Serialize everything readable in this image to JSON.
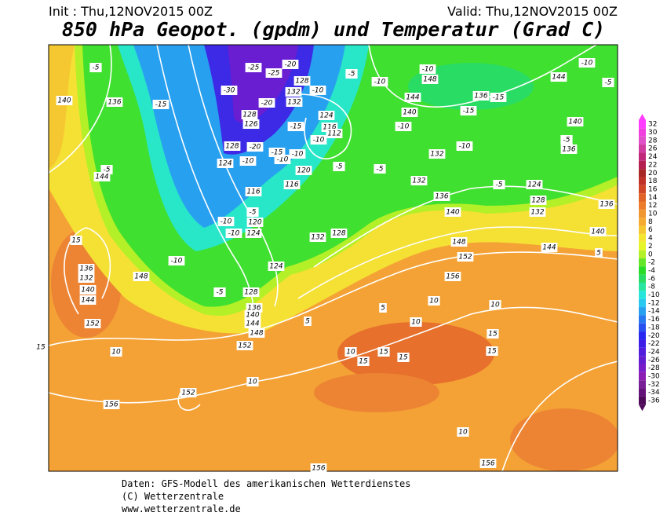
{
  "header": {
    "init": "Init : Thu,12NOV2015 00Z",
    "valid": "Valid: Thu,12NOV2015 00Z",
    "title": "850 hPa Geopot. (gpdm) und Temperatur (Grad C)"
  },
  "footer": [
    "Daten: GFS-Modell des amerikanischen Wetterdienstes",
    "(C) Wetterzentrale",
    "www.wetterzentrale.de"
  ],
  "colorbar": {
    "ticks": [
      32,
      30,
      28,
      26,
      24,
      22,
      20,
      18,
      16,
      14,
      12,
      10,
      8,
      6,
      4,
      2,
      0,
      -2,
      -4,
      -6,
      -8,
      -10,
      -12,
      -14,
      -16,
      -18,
      -20,
      -22,
      -24,
      -26,
      -28,
      -30,
      -32,
      -34,
      -36
    ],
    "colors": [
      "#ff3cff",
      "#f040e0",
      "#e050c8",
      "#d03ca0",
      "#c0287a",
      "#b41e50",
      "#a82828",
      "#c03228",
      "#d24628",
      "#e06428",
      "#eb7d2d",
      "#f09632",
      "#f5aa32",
      "#f5c832",
      "#f5e632",
      "#e6f528",
      "#b4f028",
      "#64e628",
      "#28dc28",
      "#28dc64",
      "#28e6a0",
      "#28e6dc",
      "#28c8f0",
      "#28a0f0",
      "#2878f0",
      "#2850f0",
      "#2828f0",
      "#3c1ee6",
      "#501edc",
      "#641ed2",
      "#781ec8",
      "#8c1eb4",
      "#781e96",
      "#641478",
      "#500a5a"
    ]
  },
  "map_labels": [
    "-5",
    "140",
    "136",
    "-15",
    "-5",
    "144",
    "15",
    "136",
    "132",
    "140",
    "144",
    "148",
    "-10",
    "152",
    "15",
    "10",
    "152",
    "156",
    "10",
    "-10",
    "-5",
    "120",
    "124",
    "116",
    "116",
    "120",
    "124",
    "128",
    "136",
    "140",
    "144",
    "148",
    "152",
    "5",
    "132",
    "128",
    "-5",
    "-5",
    "132",
    "136",
    "140",
    "148",
    "152",
    "156",
    "10",
    "10",
    "5",
    "10",
    "15",
    "15",
    "15",
    "15",
    "15",
    "10",
    "10",
    "156",
    "156",
    "-25",
    "-20",
    "-25",
    "-30",
    "-20",
    "128",
    "126",
    "128",
    "-20",
    "132",
    "128",
    "132",
    "-10",
    "124",
    "116",
    "112",
    "-5",
    "-10",
    "144",
    "140",
    "-10",
    "-10",
    "148",
    "136",
    "-15",
    "-15",
    "-10",
    "132",
    "-5",
    "124",
    "128",
    "132",
    "144",
    "-10",
    "-5",
    "140",
    "-5",
    "136",
    "136",
    "140",
    "144",
    "5",
    "-10",
    "124",
    "-10",
    "-10",
    "-10",
    "-15",
    "-15",
    "-10",
    "-5"
  ]
}
